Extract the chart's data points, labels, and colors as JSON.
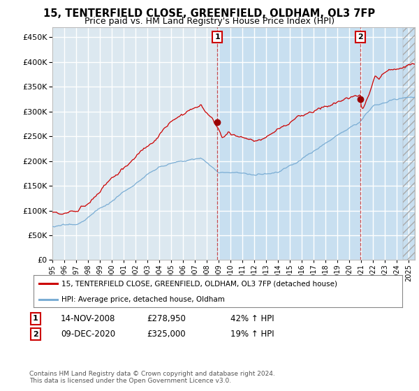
{
  "title": "15, TENTERFIELD CLOSE, GREENFIELD, OLDHAM, OL3 7FP",
  "subtitle": "Price paid vs. HM Land Registry's House Price Index (HPI)",
  "title_fontsize": 10.5,
  "subtitle_fontsize": 9,
  "background_color": "#ffffff",
  "plot_bg_color": "#dce8f0",
  "plot_bg_color_shaded": "#c8dff0",
  "grid_color": "#ffffff",
  "red_line_color": "#cc0000",
  "blue_line_color": "#7aadd4",
  "ylim": [
    0,
    470000
  ],
  "yticks": [
    0,
    50000,
    100000,
    150000,
    200000,
    250000,
    300000,
    350000,
    400000,
    450000
  ],
  "point1": {
    "date_num": 2008.88,
    "value": 278950,
    "label": "1"
  },
  "point2": {
    "date_num": 2020.94,
    "value": 325000,
    "label": "2"
  },
  "legend_label_red": "15, TENTERFIELD CLOSE, GREENFIELD, OLDHAM, OL3 7FP (detached house)",
  "legend_label_blue": "HPI: Average price, detached house, Oldham",
  "table_rows": [
    {
      "num": "1",
      "date": "14-NOV-2008",
      "price": "£278,950",
      "change": "42% ↑ HPI"
    },
    {
      "num": "2",
      "date": "09-DEC-2020",
      "price": "£325,000",
      "change": "19% ↑ HPI"
    }
  ],
  "footnote": "Contains HM Land Registry data © Crown copyright and database right 2024.\nThis data is licensed under the Open Government Licence v3.0.",
  "xmin": 1995.0,
  "xmax": 2025.5
}
